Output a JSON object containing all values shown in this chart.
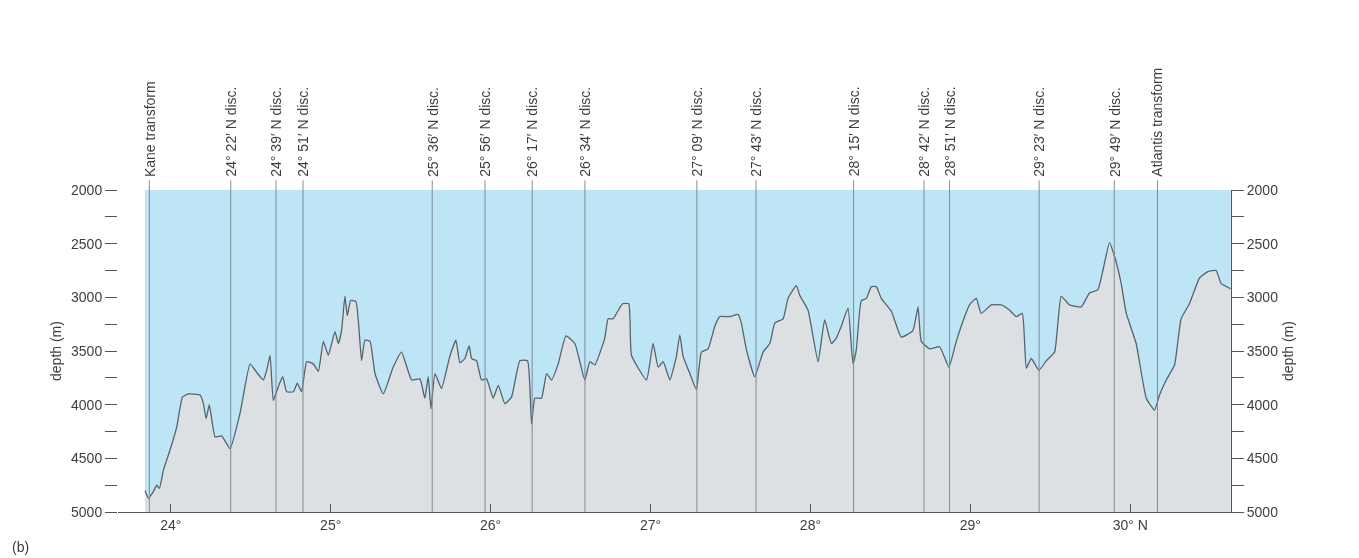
{
  "chart_data": {
    "type": "area",
    "ylabel": "depth (m)",
    "y2label": "depth (m)",
    "x": [
      23.839,
      23.86,
      23.891,
      23.912,
      23.929,
      23.954,
      23.996,
      24.037,
      24.073,
      24.11,
      24.183,
      24.204,
      24.221,
      24.241,
      24.277,
      24.318,
      24.371,
      24.433,
      24.496,
      24.537,
      24.579,
      24.6,
      24.621,
      24.641,
      24.673,
      24.7,
      24.725,
      24.767,
      24.791,
      24.818,
      24.85,
      24.891,
      24.923,
      24.954,
      24.985,
      25.027,
      25.048,
      25.068,
      25.089,
      25.104,
      25.125,
      25.158,
      25.193,
      25.214,
      25.246,
      25.277,
      25.329,
      25.391,
      25.443,
      25.506,
      25.558,
      25.589,
      25.61,
      25.627,
      25.652,
      25.693,
      25.745,
      25.783,
      25.808,
      25.839,
      25.866,
      25.881,
      25.912,
      25.943,
      25.975,
      26.016,
      26.048,
      26.089,
      26.131,
      26.183,
      26.231,
      26.256,
      26.277,
      26.318,
      26.35,
      26.381,
      26.423,
      26.471,
      26.527,
      26.589,
      26.621,
      26.652,
      26.714,
      26.735,
      26.766,
      26.825,
      26.864,
      26.881,
      26.975,
      27.016,
      27.048,
      27.079,
      27.121,
      27.162,
      27.183,
      27.204,
      27.246,
      27.287,
      27.318,
      27.36,
      27.402,
      27.433,
      27.496,
      27.548,
      27.568,
      27.6,
      27.652,
      27.704,
      27.746,
      27.777,
      27.829,
      27.86,
      27.912,
      27.933,
      27.985,
      28.048,
      28.089,
      28.131,
      28.162,
      28.193,
      28.235,
      28.266,
      28.287,
      28.318,
      28.35,
      28.381,
      28.412,
      28.443,
      28.506,
      28.568,
      28.641,
      28.673,
      28.693,
      28.746,
      28.808,
      28.866,
      28.912,
      28.964,
      28.995,
      29.037,
      29.068,
      29.131,
      29.193,
      29.246,
      29.287,
      29.325,
      29.35,
      29.381,
      29.429,
      29.475,
      29.527,
      29.568,
      29.62,
      29.693,
      29.745,
      29.797,
      29.829,
      29.87,
      29.902,
      29.943,
      29.975,
      30.037,
      30.1,
      30.152,
      30.183,
      30.225,
      30.277,
      30.318,
      30.37,
      30.433,
      30.485,
      30.537,
      30.568,
      30.627
    ],
    "series": [
      {
        "color": "#56636e",
        "values": [
          4800,
          4870,
          4810,
          4750,
          4780,
          4610,
          4420,
          4210,
          3930,
          3900,
          3910,
          3990,
          4130,
          4000,
          4300,
          4290,
          4410,
          4080,
          3620,
          3700,
          3770,
          3680,
          3540,
          3960,
          3830,
          3740,
          3880,
          3880,
          3800,
          3880,
          3600,
          3620,
          3690,
          3410,
          3540,
          3320,
          3430,
          3310,
          2990,
          3170,
          3030,
          3040,
          3590,
          3400,
          3410,
          3710,
          3900,
          3650,
          3510,
          3770,
          3760,
          3940,
          3740,
          4040,
          3710,
          3850,
          3550,
          3400,
          3610,
          3570,
          3450,
          3570,
          3590,
          3770,
          3760,
          3940,
          3820,
          3990,
          3930,
          3590,
          3590,
          4180,
          3940,
          3940,
          3710,
          3770,
          3620,
          3360,
          3430,
          3770,
          3600,
          3630,
          3380,
          3200,
          3200,
          3060,
          3060,
          3540,
          3770,
          3430,
          3650,
          3600,
          3770,
          3550,
          3350,
          3550,
          3710,
          3860,
          3510,
          3480,
          3270,
          3180,
          3180,
          3160,
          3240,
          3490,
          3740,
          3510,
          3430,
          3240,
          3200,
          3010,
          2890,
          2980,
          3120,
          3600,
          3210,
          3430,
          3380,
          3270,
          3100,
          3620,
          3490,
          3030,
          3010,
          2900,
          2900,
          3010,
          3130,
          3370,
          3310,
          3090,
          3410,
          3480,
          3460,
          3650,
          3410,
          3180,
          3070,
          3010,
          3150,
          3070,
          3070,
          3120,
          3180,
          3150,
          3660,
          3570,
          3680,
          3590,
          3510,
          2990,
          3070,
          3090,
          2960,
          2930,
          2750,
          2490,
          2620,
          2870,
          3150,
          3430,
          3940,
          4050,
          3910,
          3770,
          3630,
          3200,
          3060,
          2820,
          2760,
          2750,
          2870,
          2920
        ]
      }
    ],
    "xlim": [
      23.67,
      30.63
    ],
    "xticks": [
      {
        "value": 24,
        "label": "24°"
      },
      {
        "value": 25,
        "label": "25°"
      },
      {
        "value": 26,
        "label": "26°"
      },
      {
        "value": 27,
        "label": "27°"
      },
      {
        "value": 28,
        "label": "28°"
      },
      {
        "value": 29,
        "label": "29°"
      },
      {
        "value": 30,
        "label": "30° N"
      }
    ],
    "ylim": [
      5000,
      2000
    ],
    "yticks": [
      2000,
      {
        "value": 2250,
        "label": null
      },
      2500,
      {
        "value": 2750,
        "label": null
      },
      3000,
      {
        "value": 3250,
        "label": null
      },
      3500,
      {
        "value": 3750,
        "label": null
      },
      4000,
      {
        "value": 4250,
        "label": null
      },
      4500,
      {
        "value": 4750,
        "label": null
      },
      5000
    ],
    "y2lim": [
      5000,
      2000
    ],
    "y2ticks": [
      2000,
      {
        "value": 2250,
        "label": null
      },
      2500,
      {
        "value": 2750,
        "label": null
      },
      3000,
      {
        "value": 3250,
        "label": null
      },
      3500,
      {
        "value": 3750,
        "label": null
      },
      4000,
      {
        "value": 4250,
        "label": null
      },
      4500,
      {
        "value": 4750,
        "label": null
      },
      5000
    ],
    "bands": [
      {
        "axis": "x",
        "from": 23.839,
        "to": 30.627,
        "color": "#bde5f5"
      }
    ],
    "ref_lines": [
      {
        "axis": "x",
        "value": 23.866,
        "label": "Kane transform",
        "color": "#7d8c98"
      },
      {
        "axis": "x",
        "value": 24.375,
        "label": "24° 22′ N disc.",
        "color": "#7d8c98"
      },
      {
        "axis": "x",
        "value": 24.658,
        "label": "24° 39′ N disc.",
        "color": "#7d8c98"
      },
      {
        "axis": "x",
        "value": 24.827,
        "label": "24° 51′ N disc.",
        "color": "#7d8c98"
      },
      {
        "axis": "x",
        "value": 25.635,
        "label": "25° 36′ N disc.",
        "color": "#7d8c98"
      },
      {
        "axis": "x",
        "value": 25.965,
        "label": "25° 56′ N disc.",
        "color": "#7d8c98"
      },
      {
        "axis": "x",
        "value": 26.26,
        "label": "26° 17′ N disc.",
        "color": "#7d8c98"
      },
      {
        "axis": "x",
        "value": 26.59,
        "label": "26° 34′ N disc.",
        "color": "#7d8c98"
      },
      {
        "axis": "x",
        "value": 27.29,
        "label": "27° 09′ N disc.",
        "color": "#7d8c98"
      },
      {
        "axis": "x",
        "value": 27.66,
        "label": "27° 43′ N disc.",
        "color": "#7d8c98"
      },
      {
        "axis": "x",
        "value": 28.27,
        "label": "28° 15′ N disc.",
        "color": "#7d8c98"
      },
      {
        "axis": "x",
        "value": 28.71,
        "label": "28° 42′ N disc.",
        "color": "#7d8c98"
      },
      {
        "axis": "x",
        "value": 28.87,
        "label": "28° 51′ N disc.",
        "color": "#7d8c98"
      },
      {
        "axis": "x",
        "value": 29.43,
        "label": "29° 23′ N disc.",
        "color": "#7d8c98"
      },
      {
        "axis": "x",
        "value": 29.9,
        "label": "29° 49′ N disc.",
        "color": "#7d8c98"
      },
      {
        "axis": "x",
        "value": 30.17,
        "label": "Atlantis transform",
        "color": "#7d8c98"
      }
    ],
    "annotations": [
      "(b)"
    ]
  }
}
